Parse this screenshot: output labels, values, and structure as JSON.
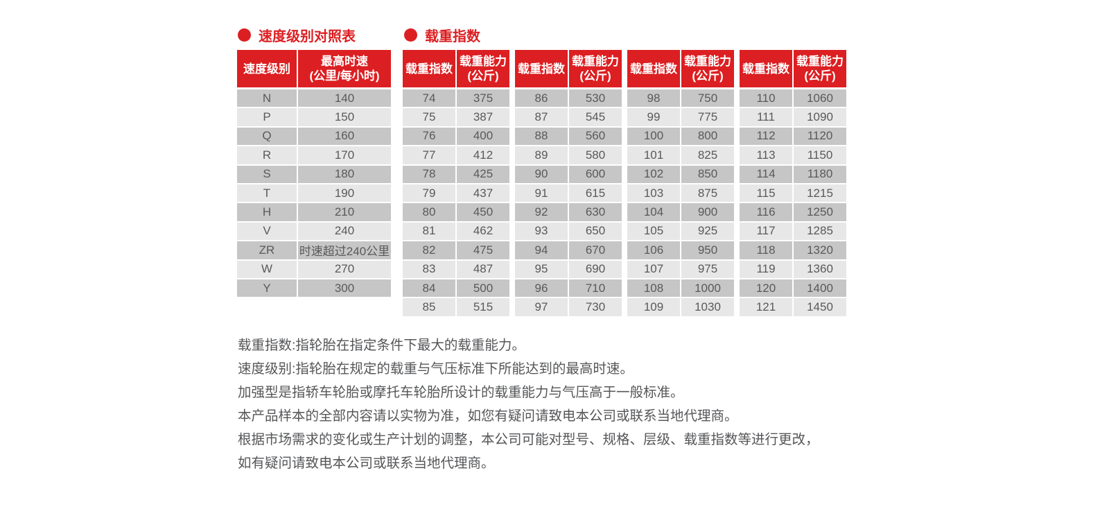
{
  "page": {
    "colors": {
      "accent_red": "#dc1f22",
      "row_dark": "#c7c6c6",
      "row_light": "#e8e7e7",
      "cell_text": "#58595b",
      "note_text": "#555658",
      "background": "#ffffff"
    }
  },
  "speed_table": {
    "title": "速度级别对照表",
    "col_headers": [
      "速度级别",
      "最高时速\n(公里/每小时)"
    ],
    "rows": [
      [
        "N",
        "140"
      ],
      [
        "P",
        "150"
      ],
      [
        "Q",
        "160"
      ],
      [
        "R",
        "170"
      ],
      [
        "S",
        "180"
      ],
      [
        "T",
        "190"
      ],
      [
        "H",
        "210"
      ],
      [
        "V",
        "240"
      ],
      [
        "ZR",
        "时速超过240公里"
      ],
      [
        "W",
        "270"
      ],
      [
        "Y",
        "300"
      ]
    ]
  },
  "load_table": {
    "title": "载重指数",
    "col_headers": [
      "载重指数",
      "载重能力\n(公斤)"
    ],
    "groups": [
      [
        [
          "74",
          "375"
        ],
        [
          "75",
          "387"
        ],
        [
          "76",
          "400"
        ],
        [
          "77",
          "412"
        ],
        [
          "78",
          "425"
        ],
        [
          "79",
          "437"
        ],
        [
          "80",
          "450"
        ],
        [
          "81",
          "462"
        ],
        [
          "82",
          "475"
        ],
        [
          "83",
          "487"
        ],
        [
          "84",
          "500"
        ],
        [
          "85",
          "515"
        ]
      ],
      [
        [
          "86",
          "530"
        ],
        [
          "87",
          "545"
        ],
        [
          "88",
          "560"
        ],
        [
          "89",
          "580"
        ],
        [
          "90",
          "600"
        ],
        [
          "91",
          "615"
        ],
        [
          "92",
          "630"
        ],
        [
          "93",
          "650"
        ],
        [
          "94",
          "670"
        ],
        [
          "95",
          "690"
        ],
        [
          "96",
          "710"
        ],
        [
          "97",
          "730"
        ]
      ],
      [
        [
          "98",
          "750"
        ],
        [
          "99",
          "775"
        ],
        [
          "100",
          "800"
        ],
        [
          "101",
          "825"
        ],
        [
          "102",
          "850"
        ],
        [
          "103",
          "875"
        ],
        [
          "104",
          "900"
        ],
        [
          "105",
          "925"
        ],
        [
          "106",
          "950"
        ],
        [
          "107",
          "975"
        ],
        [
          "108",
          "1000"
        ],
        [
          "109",
          "1030"
        ]
      ],
      [
        [
          "110",
          "1060"
        ],
        [
          "111",
          "1090"
        ],
        [
          "112",
          "1120"
        ],
        [
          "113",
          "1150"
        ],
        [
          "114",
          "1180"
        ],
        [
          "115",
          "1215"
        ],
        [
          "116",
          "1250"
        ],
        [
          "117",
          "1285"
        ],
        [
          "118",
          "1320"
        ],
        [
          "119",
          "1360"
        ],
        [
          "120",
          "1400"
        ],
        [
          "121",
          "1450"
        ]
      ]
    ]
  },
  "notes": [
    "载重指数:指轮胎在指定条件下最大的载重能力。",
    "速度级别:指轮胎在规定的载重与气压标准下所能达到的最高时速。",
    "加强型是指轿车轮胎或摩托车轮胎所设计的载重能力与气压高于一般标准。",
    "本产品样本的全部内容请以实物为准，如您有疑问请致电本公司或联系当地代理商。",
    "根据市场需求的变化或生产计划的调整，本公司可能对型号、规格、层级、载重指数等进行更改，",
    "如有疑问请致电本公司或联系当地代理商。"
  ]
}
